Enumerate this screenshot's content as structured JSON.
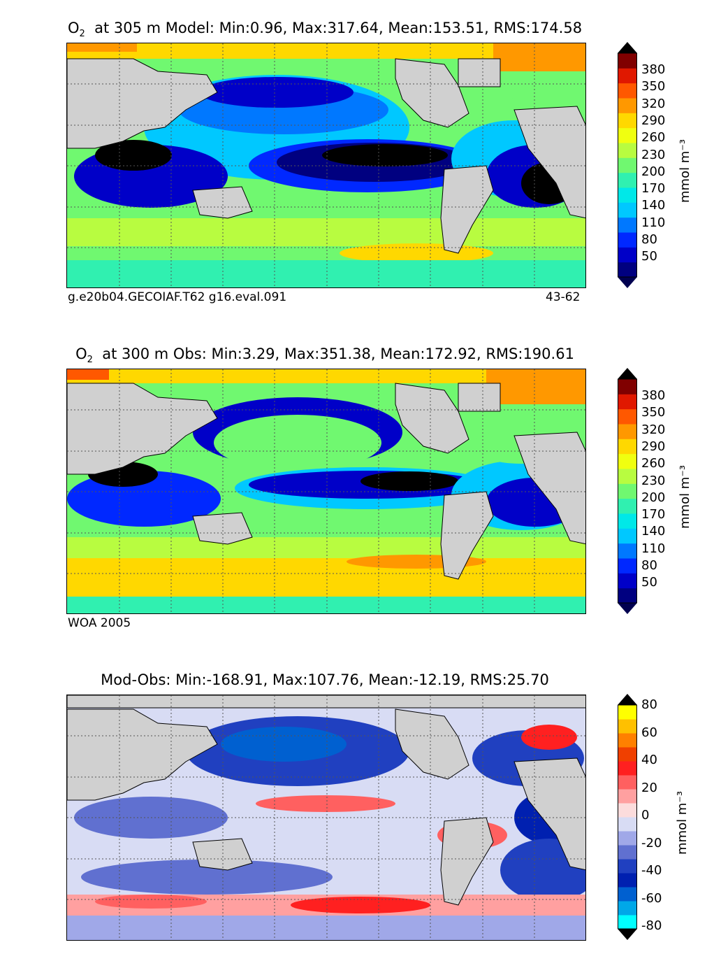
{
  "panels": [
    {
      "id": "model",
      "title_lead": "O",
      "title_sub": "2",
      "title_rest": "  at 305 m Model: Min:0.96, Max:317.64, Mean:153.51, RMS:174.58",
      "footer_left": "g.e20b04.GECOIAF.T62 g16.eval.091",
      "footer_right": "43-62"
    },
    {
      "id": "obs",
      "title_lead": "O",
      "title_sub": "2",
      "title_rest": "  at 300 m Obs: Min:3.29, Max:351.38, Mean:172.92, RMS:190.61",
      "footer_left": "WOA 2005",
      "footer_right": ""
    },
    {
      "id": "diff",
      "title_lead": "",
      "title_sub": "",
      "title_rest": "Mod-Obs: Min:-168.91, Max:107.76, Mean:-12.19, RMS:25.70",
      "footer_left": "",
      "footer_right": ""
    }
  ],
  "colorbars": [
    {
      "unit": "mmol m⁻³",
      "ticks": [
        "380",
        "350",
        "320",
        "290",
        "260",
        "230",
        "200",
        "170",
        "140",
        "110",
        "80",
        "50"
      ],
      "colors": [
        "#000080",
        "#0000c8",
        "#0028ff",
        "#0078ff",
        "#00c8ff",
        "#00e8e8",
        "#30f0b0",
        "#70f870",
        "#b8fc40",
        "#f0ff10",
        "#ffd800",
        "#ff9800",
        "#ff5800",
        "#e01800",
        "#800000"
      ],
      "under_color": "#000050",
      "over_color": "#000000"
    },
    {
      "unit": "mmol m⁻³",
      "ticks": [
        "380",
        "350",
        "320",
        "290",
        "260",
        "230",
        "200",
        "170",
        "140",
        "110",
        "80",
        "50"
      ],
      "colors": [
        "#000080",
        "#0000c8",
        "#0028ff",
        "#0078ff",
        "#00c8ff",
        "#00e8e8",
        "#30f0b0",
        "#70f870",
        "#b8fc40",
        "#f0ff10",
        "#ffd800",
        "#ff9800",
        "#ff5800",
        "#e01800",
        "#800000"
      ],
      "under_color": "#000050",
      "over_color": "#000000"
    },
    {
      "unit": "mmol m⁻³",
      "ticks": [
        "80",
        "60",
        "40",
        "20",
        "0",
        "-20",
        "-40",
        "-60",
        "-80"
      ],
      "colors": [
        "#00ffff",
        "#00a8e8",
        "#0060d0",
        "#0020b0",
        "#2040c0",
        "#6070d0",
        "#a0a8e8",
        "#d8dcf4",
        "#fcdcdc",
        "#ffa0a0",
        "#ff6060",
        "#ff2020",
        "#f04000",
        "#ff8000",
        "#ffc000",
        "#ffff00"
      ],
      "under_color": "#000000",
      "over_color": "#000000"
    }
  ],
  "palette": {
    "land": "#d0d0d0",
    "grid": "#555555"
  }
}
